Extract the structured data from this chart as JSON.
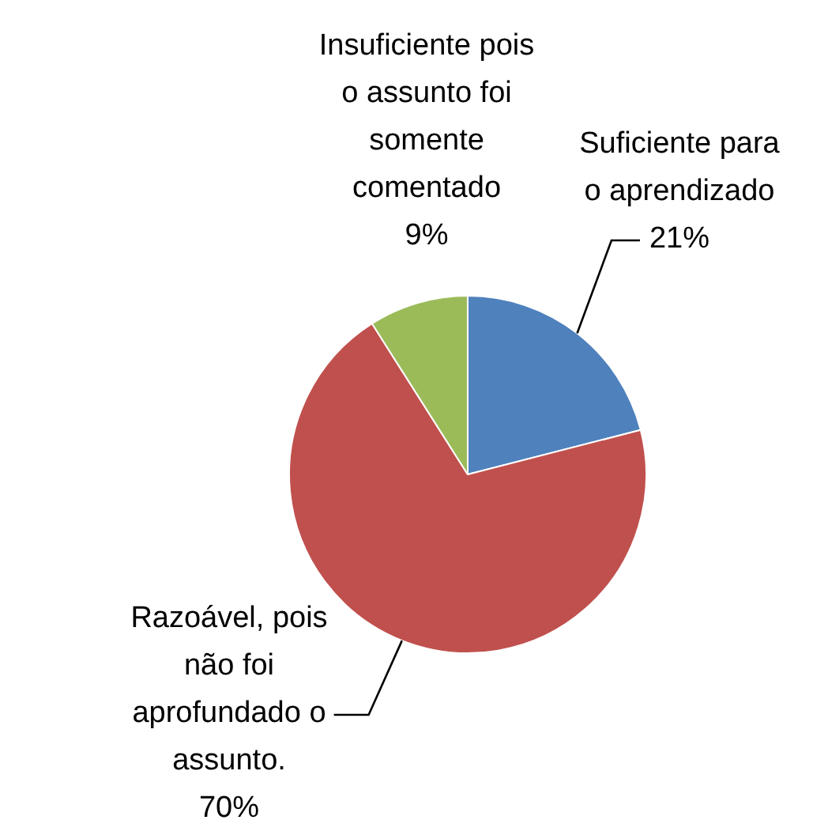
{
  "chart_data": {
    "type": "pie",
    "categories": [
      "Suficiente para o aprendizado",
      "Razoável, pois não foi aprofundado o assunto.",
      "Insuficiente pois o assunto foi somente comentado"
    ],
    "values": [
      21,
      70,
      9
    ],
    "colors": [
      "#4f81bd",
      "#c0504d",
      "#9bbb59"
    ],
    "value_labels": [
      "21%",
      "70%",
      "9%"
    ],
    "legend": false
  }
}
